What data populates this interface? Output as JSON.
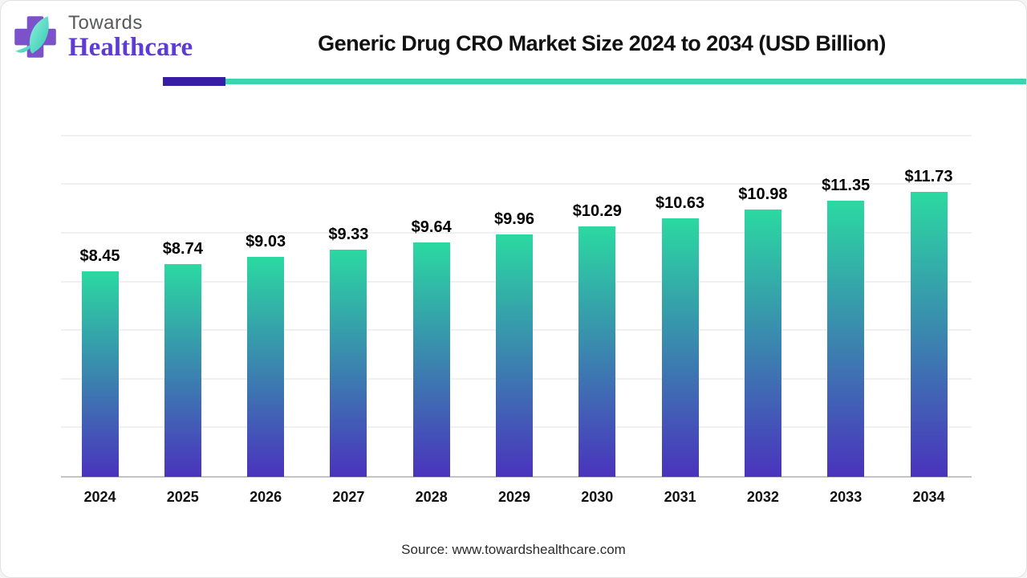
{
  "logo": {
    "brand_top": "Towards",
    "brand_bottom": "Healthcare",
    "icon": "cross-leaf-logo"
  },
  "header": {
    "title": "Generic Drug CRO Market Size 2024 to 2034 (USD Billion)"
  },
  "chart_data": {
    "type": "bar",
    "title": "Generic Drug CRO Market Size 2024 to 2034 (USD Billion)",
    "unit": "USD Billion",
    "categories": [
      "2024",
      "2025",
      "2026",
      "2027",
      "2028",
      "2029",
      "2030",
      "2031",
      "2032",
      "2033",
      "2034"
    ],
    "values": [
      8.45,
      8.74,
      9.03,
      9.33,
      9.64,
      9.96,
      10.29,
      10.63,
      10.98,
      11.35,
      11.73
    ],
    "value_labels": [
      "$8.45",
      "$8.74",
      "$9.03",
      "$9.33",
      "$9.64",
      "$9.96",
      "$10.29",
      "$10.63",
      "$10.98",
      "$11.35",
      "$11.73"
    ],
    "xlabel": "",
    "ylabel": "",
    "ylim": [
      0,
      14
    ],
    "grid": "horizontal-faint",
    "legend": "none",
    "bar_gradient_top": "#2BD9A1",
    "bar_gradient_bottom": "#4A33BD"
  },
  "footer": {
    "source": "Source: www.towardshealthcare.com"
  },
  "colors": {
    "accent_teal": "#38D6AE",
    "accent_indigo": "#371CA6",
    "logo_cross_purple": "#7C52CB",
    "logo_leaf_teal": "#43D6C0",
    "brand_text_gray": "#58595B",
    "brand_text_purple": "#5F3BD5",
    "title_text": "#111111",
    "axis_line": "#C4C4C4",
    "gridline": "#F0F0F3",
    "background": "#FFFFFF"
  }
}
